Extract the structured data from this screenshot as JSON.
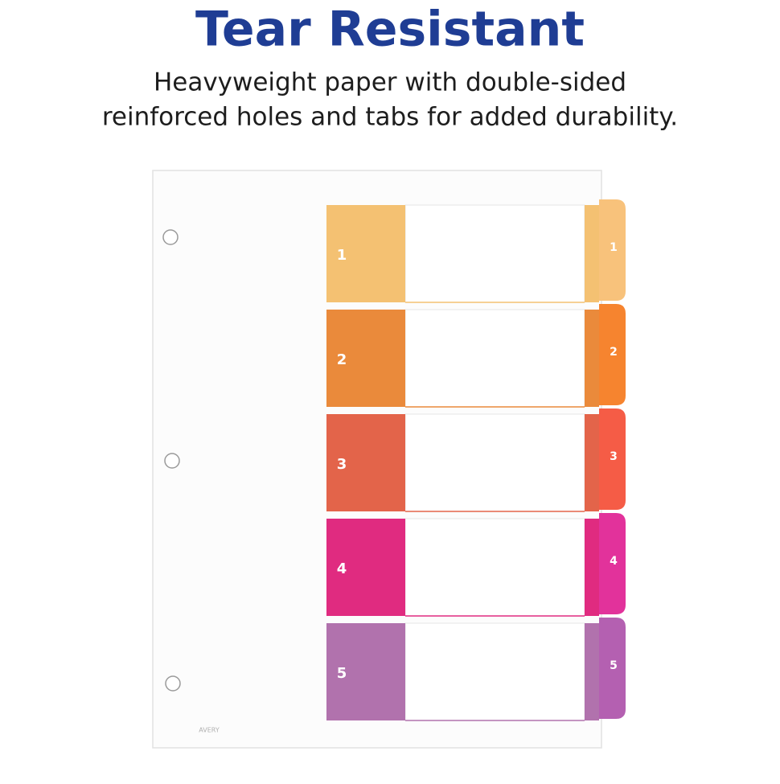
{
  "header": {
    "title": "Tear Resistant",
    "subtitle_lines": [
      "Heavyweight paper with double-sided",
      "reinforced holes and tabs for added durability."
    ]
  },
  "tabs": [
    {
      "label": "1"
    },
    {
      "label": "2"
    },
    {
      "label": "3"
    },
    {
      "label": "4"
    },
    {
      "label": "5"
    }
  ],
  "brand": "AVERY"
}
